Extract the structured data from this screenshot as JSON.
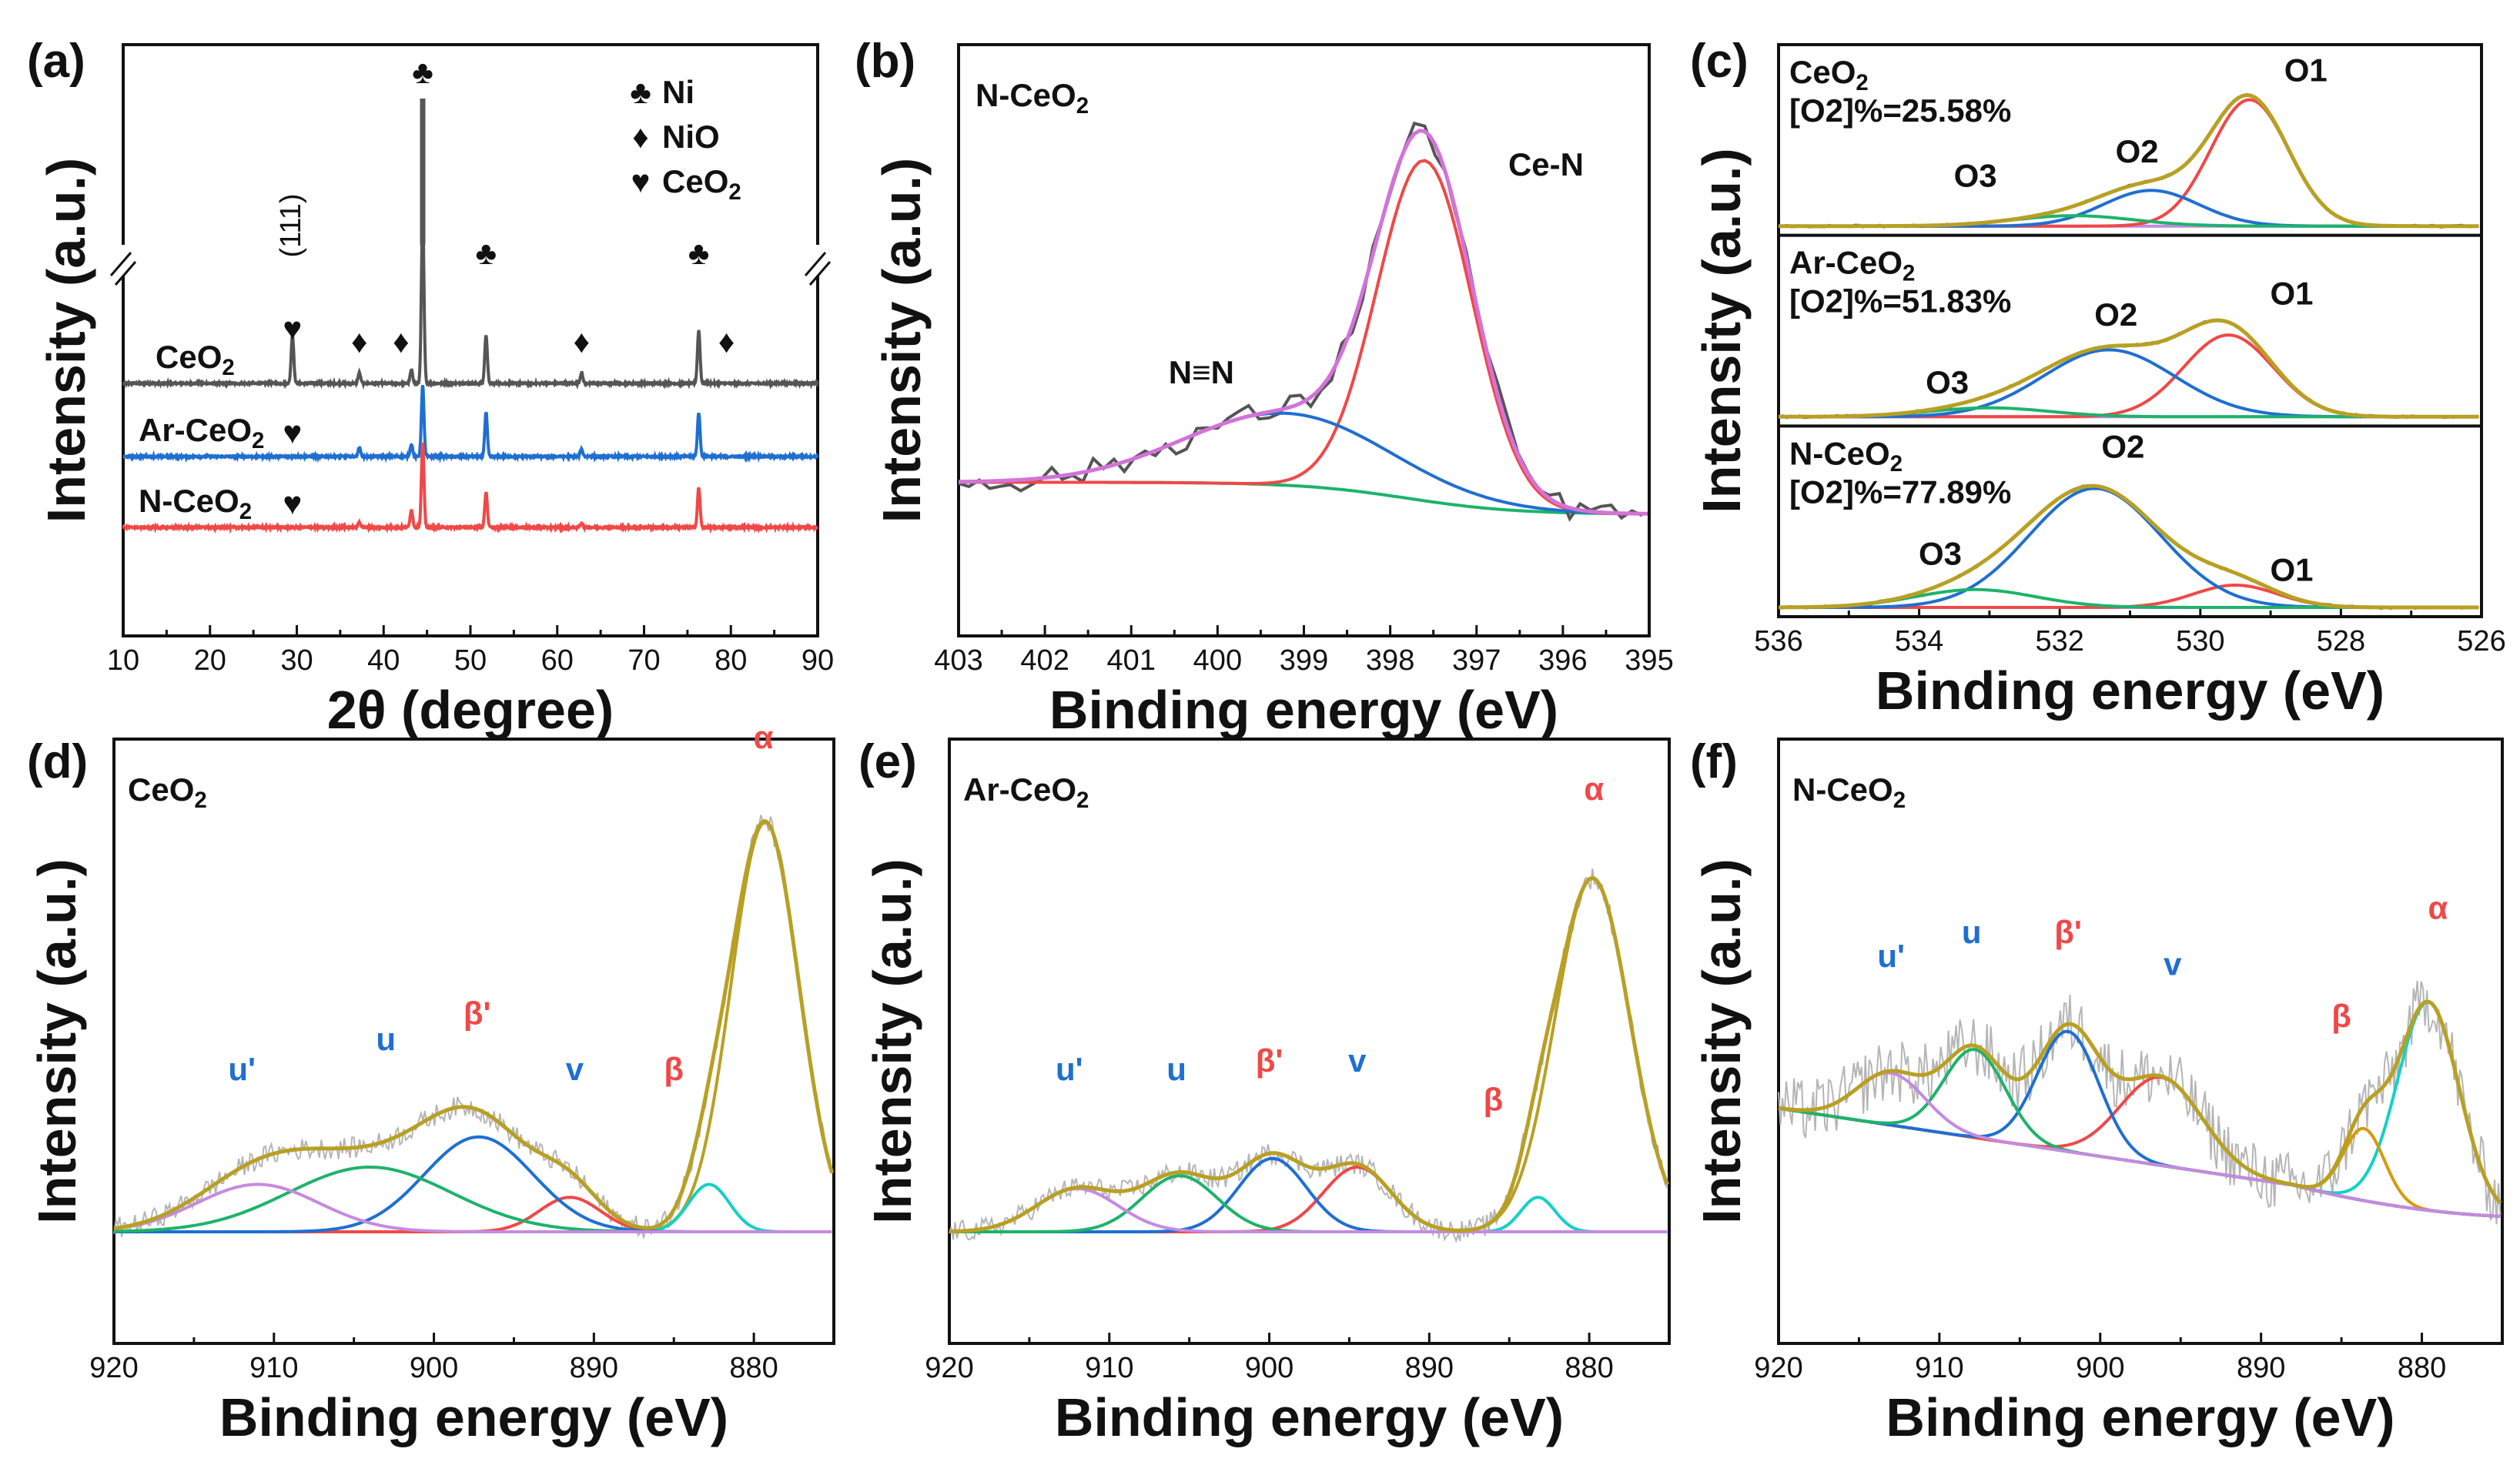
{
  "colors": {
    "grey": "#555555",
    "blue": "#1f6fd1",
    "red": "#f04848",
    "green": "#1db36b",
    "purple": "#c58ae0",
    "violet": "#a070e0",
    "cyan": "#15d0c8",
    "olive": "#b8a024",
    "gold": "#d49a10",
    "brown": "#7a4a38",
    "noise": "#b5b5b5",
    "darkblue": "#1a5bc8"
  },
  "chart_data": [
    {
      "id": "a",
      "type": "line",
      "panel_label": "(a)",
      "xlabel": "2θ (degree)",
      "ylabel": "Intensity (a.u.)",
      "xlim": [
        10,
        90
      ],
      "xticks": [
        "10",
        "20",
        "30",
        "40",
        "50",
        "60",
        "70",
        "80",
        "90"
      ],
      "axis_break": "//",
      "legend": [
        {
          "symbol": "♣",
          "label": "Ni"
        },
        {
          "symbol": "♦",
          "label": "NiO"
        },
        {
          "symbol": "♥",
          "label": "CeO",
          "sub": "2"
        }
      ],
      "series": [
        {
          "name": "CeO",
          "sub": "2",
          "color": "#555555",
          "peaks": [
            [
              29.5,
              0.55
            ],
            [
              37.2,
              0.12
            ],
            [
              43.2,
              0.15
            ],
            [
              44.5,
              1.9
            ],
            [
              51.8,
              0.55
            ],
            [
              62.8,
              0.12
            ],
            [
              76.3,
              0.6
            ]
          ]
        },
        {
          "name": "Ar-CeO",
          "sub": "2",
          "color": "#1f6fd1",
          "peaks": [
            [
              37.2,
              0.1
            ],
            [
              43.2,
              0.14
            ],
            [
              44.5,
              0.8
            ],
            [
              51.8,
              0.5
            ],
            [
              62.8,
              0.08
            ],
            [
              76.3,
              0.5
            ]
          ]
        },
        {
          "name": "N-CeO",
          "sub": "2",
          "color": "#f04848",
          "peaks": [
            [
              37.2,
              0.06
            ],
            [
              43.2,
              0.2
            ],
            [
              44.5,
              0.95
            ],
            [
              51.8,
              0.4
            ],
            [
              62.8,
              0.05
            ],
            [
              76.3,
              0.45
            ]
          ]
        }
      ],
      "annotations": [
        {
          "text": "♣",
          "x": 44.5,
          "pos": "top"
        },
        {
          "text": "♥",
          "x": 29.5,
          "pos": "upper"
        },
        {
          "text": "(111)",
          "x": 29.5,
          "pos": "upper-rotated"
        },
        {
          "text": "♣",
          "x": 51.8,
          "pos": "upper"
        },
        {
          "text": "♣",
          "x": 76.3,
          "pos": "upper"
        },
        {
          "text": "♦",
          "x": 37.2,
          "pos": "mid"
        },
        {
          "text": "♦",
          "x": 42.0,
          "pos": "mid"
        },
        {
          "text": "♦",
          "x": 62.8,
          "pos": "mid"
        },
        {
          "text": "♦",
          "x": 79.5,
          "pos": "mid"
        },
        {
          "text": "♥",
          "x": 29.5,
          "pos": "ar"
        },
        {
          "text": "♥",
          "x": 29.5,
          "pos": "n"
        }
      ]
    },
    {
      "id": "b",
      "type": "line",
      "panel_label": "(b)",
      "xlabel": "Binding energy (eV)",
      "ylabel": "Intensity (a.u.)",
      "xlim": [
        403,
        395
      ],
      "x_reversed": true,
      "xticks": [
        "403",
        "402",
        "401",
        "400",
        "399",
        "398",
        "397",
        "396",
        "395"
      ],
      "sample": "N-CeO",
      "sample_sub": "2",
      "components": [
        {
          "name": "Ce-N",
          "center": 397.6,
          "fwhm": 1.3,
          "height": 0.85,
          "color": "#f04848"
        },
        {
          "name": "N≡N",
          "center": 399.2,
          "fwhm": 2.8,
          "height": 0.18,
          "color": "#1f6fd1"
        }
      ],
      "background": {
        "from": 0.08,
        "to": 0.0,
        "color": "#1db36b"
      },
      "envelope_color": "#d373d9",
      "raw_color": "#555555",
      "labels": [
        {
          "text": "Ce-N",
          "x": 396.9
        },
        {
          "text": "N≡N",
          "x": 400.3
        }
      ]
    },
    {
      "id": "c",
      "type": "line",
      "panel_label": "(c)",
      "xlabel": "Binding energy (eV)",
      "ylabel": "Intensity (a.u.)",
      "xlim": [
        536,
        526
      ],
      "x_reversed": true,
      "xticks": [
        "536",
        "534",
        "532",
        "530",
        "528",
        "526"
      ],
      "subplots": [
        {
          "sample": "CeO",
          "sub": "2",
          "o2": "[O2]%=25.58%",
          "components": [
            {
              "name": "O1",
              "center": 529.3,
              "fwhm": 1.3,
              "height": 0.85,
              "color": "#f04848"
            },
            {
              "name": "O2",
              "center": 530.7,
              "fwhm": 1.6,
              "height": 0.24,
              "color": "#1f6fd1"
            },
            {
              "name": "O3",
              "center": 531.8,
              "fwhm": 2.0,
              "height": 0.07,
              "color": "#1db36b"
            }
          ]
        },
        {
          "sample": "Ar-CeO",
          "sub": "2",
          "o2": "[O2]%=51.83%",
          "components": [
            {
              "name": "O1",
              "center": 529.6,
              "fwhm": 1.5,
              "height": 0.55,
              "color": "#f04848"
            },
            {
              "name": "O2",
              "center": 531.3,
              "fwhm": 2.2,
              "height": 0.45,
              "color": "#1f6fd1"
            },
            {
              "name": "O3",
              "center": 533.0,
              "fwhm": 2.0,
              "height": 0.06,
              "color": "#1db36b"
            }
          ]
        },
        {
          "sample": "N-CeO",
          "sub": "2",
          "o2": "[O2]%=77.89%",
          "components": [
            {
              "name": "O1",
              "center": 529.5,
              "fwhm": 1.4,
              "height": 0.15,
              "color": "#f04848"
            },
            {
              "name": "O2",
              "center": 531.5,
              "fwhm": 2.2,
              "height": 0.8,
              "color": "#1f6fd1"
            },
            {
              "name": "O3",
              "center": 533.2,
              "fwhm": 2.0,
              "height": 0.12,
              "color": "#1db36b"
            }
          ]
        }
      ],
      "labels": [
        {
          "sub": 0,
          "text": "O1",
          "x": 528.5,
          "y": 0.95
        },
        {
          "sub": 0,
          "text": "O2",
          "x": 530.9,
          "y": 0.45
        },
        {
          "sub": 0,
          "text": "O3",
          "x": 533.2,
          "y": 0.3
        },
        {
          "sub": 1,
          "text": "O1",
          "x": 528.7,
          "y": 0.75
        },
        {
          "sub": 1,
          "text": "O2",
          "x": 531.2,
          "y": 0.62
        },
        {
          "sub": 1,
          "text": "O3",
          "x": 533.6,
          "y": 0.2
        },
        {
          "sub": 2,
          "text": "O2",
          "x": 531.1,
          "y": 0.98
        },
        {
          "sub": 2,
          "text": "O3",
          "x": 533.7,
          "y": 0.32
        },
        {
          "sub": 2,
          "text": "O1",
          "x": 528.7,
          "y": 0.22
        }
      ]
    },
    {
      "id": "d",
      "type": "line",
      "panel_label": "(d)",
      "xlabel": "Binding energy (eV)",
      "ylabel": "Intensity (a.u.)",
      "xlim": [
        920,
        875
      ],
      "x_reversed": true,
      "xticks": [
        "920",
        "910",
        "900",
        "890",
        "880"
      ],
      "sample": "CeO",
      "sample_sub": "2",
      "components": [
        {
          "name": "α",
          "center": 879.3,
          "fwhm": 5.0,
          "height": 0.95,
          "color": "#b8a024"
        },
        {
          "name": "β",
          "center": 882.8,
          "fwhm": 3.0,
          "height": 0.11,
          "color": "#15d0c8"
        },
        {
          "name": "v",
          "center": 891.5,
          "fwhm": 4.5,
          "height": 0.08,
          "color": "#f04848"
        },
        {
          "name": "β'",
          "center": 897.2,
          "fwhm": 8.0,
          "height": 0.22,
          "color": "#1f6fd1"
        },
        {
          "name": "u",
          "center": 904.0,
          "fwhm": 12.0,
          "height": 0.15,
          "color": "#1db36b"
        },
        {
          "name": "u'",
          "center": 911.0,
          "fwhm": 9.0,
          "height": 0.11,
          "color": "#c58ae0"
        }
      ],
      "labels": [
        {
          "text": "α",
          "x": 879.4,
          "y": 1.1,
          "color": "#f04848"
        },
        {
          "text": "β",
          "x": 885.0,
          "y": 0.33,
          "color": "#f04848"
        },
        {
          "text": "v",
          "x": 891.2,
          "y": 0.33,
          "color": "#1f6fd1"
        },
        {
          "text": "β'",
          "x": 897.3,
          "y": 0.46,
          "color": "#f04848"
        },
        {
          "text": "u",
          "x": 903.0,
          "y": 0.4,
          "color": "#1f6fd1"
        },
        {
          "text": "u'",
          "x": 912.0,
          "y": 0.33,
          "color": "#1f6fd1"
        }
      ]
    },
    {
      "id": "e",
      "type": "line",
      "panel_label": "(e)",
      "xlabel": "Binding energy (eV)",
      "ylabel": "Intensity (a.u.)",
      "xlim": [
        920,
        875
      ],
      "x_reversed": true,
      "xticks": [
        "920",
        "910",
        "900",
        "890",
        "880"
      ],
      "sample": "Ar-CeO",
      "sample_sub": "2",
      "components": [
        {
          "name": "α",
          "center": 879.8,
          "fwhm": 5.5,
          "height": 0.82,
          "color": "#b8a024"
        },
        {
          "name": "β",
          "center": 883.2,
          "fwhm": 2.5,
          "height": 0.08,
          "color": "#15d0c8"
        },
        {
          "name": "v",
          "center": 894.5,
          "fwhm": 5.0,
          "height": 0.15,
          "color": "#f04848"
        },
        {
          "name": "β'",
          "center": 899.8,
          "fwhm": 5.0,
          "height": 0.17,
          "color": "#1f6fd1"
        },
        {
          "name": "u",
          "center": 905.6,
          "fwhm": 5.5,
          "height": 0.13,
          "color": "#1db36b"
        },
        {
          "name": "u'",
          "center": 912.0,
          "fwhm": 6.0,
          "height": 0.1,
          "color": "#c58ae0"
        }
      ],
      "labels": [
        {
          "text": "α",
          "x": 879.7,
          "y": 0.98,
          "color": "#f04848"
        },
        {
          "text": "β",
          "x": 886.0,
          "y": 0.26,
          "color": "#f04848"
        },
        {
          "text": "v",
          "x": 894.5,
          "y": 0.35,
          "color": "#1f6fd1"
        },
        {
          "text": "β'",
          "x": 900.0,
          "y": 0.35,
          "color": "#f04848"
        },
        {
          "text": "u",
          "x": 905.8,
          "y": 0.33,
          "color": "#1f6fd1"
        },
        {
          "text": "u'",
          "x": 912.5,
          "y": 0.33,
          "color": "#1f6fd1"
        }
      ]
    },
    {
      "id": "f",
      "type": "line",
      "panel_label": "(f)",
      "xlabel": "Binding energy (eV)",
      "ylabel": "Intensity (a.u.)",
      "xlim": [
        920,
        875
      ],
      "x_reversed": true,
      "xticks": [
        "920",
        "910",
        "900",
        "890",
        "880"
      ],
      "sample": "N-CeO",
      "sample_sub": "2",
      "components": [
        {
          "name": "α",
          "center": 879.6,
          "fwhm": 4.5,
          "height": 0.52,
          "color": "#15d0c8"
        },
        {
          "name": "β",
          "center": 883.6,
          "fwhm": 3.0,
          "height": 0.18,
          "color": "#d49a10"
        },
        {
          "name": "v",
          "center": 896.2,
          "fwhm": 6.0,
          "height": 0.22,
          "color": "#f04848"
        },
        {
          "name": "β'",
          "center": 902.0,
          "fwhm": 4.5,
          "height": 0.3,
          "color": "#1f6fd1"
        },
        {
          "name": "u",
          "center": 907.8,
          "fwhm": 4.5,
          "height": 0.22,
          "color": "#1db36b"
        },
        {
          "name": "u'",
          "center": 913.0,
          "fwhm": 5.0,
          "height": 0.13,
          "color": "#c58ae0"
        }
      ],
      "background": {
        "from": 0.3,
        "to": 0.0,
        "color": "#7a4a38"
      },
      "labels": [
        {
          "text": "α",
          "x": 879.0,
          "y": 0.72,
          "color": "#f04848"
        },
        {
          "text": "β",
          "x": 885.0,
          "y": 0.45,
          "color": "#f04848"
        },
        {
          "text": "v",
          "x": 895.5,
          "y": 0.58,
          "color": "#1f6fd1"
        },
        {
          "text": "β'",
          "x": 902.0,
          "y": 0.66,
          "color": "#f04848"
        },
        {
          "text": "u",
          "x": 908.0,
          "y": 0.66,
          "color": "#1f6fd1"
        },
        {
          "text": "u'",
          "x": 913.0,
          "y": 0.6,
          "color": "#1f6fd1"
        }
      ]
    }
  ]
}
